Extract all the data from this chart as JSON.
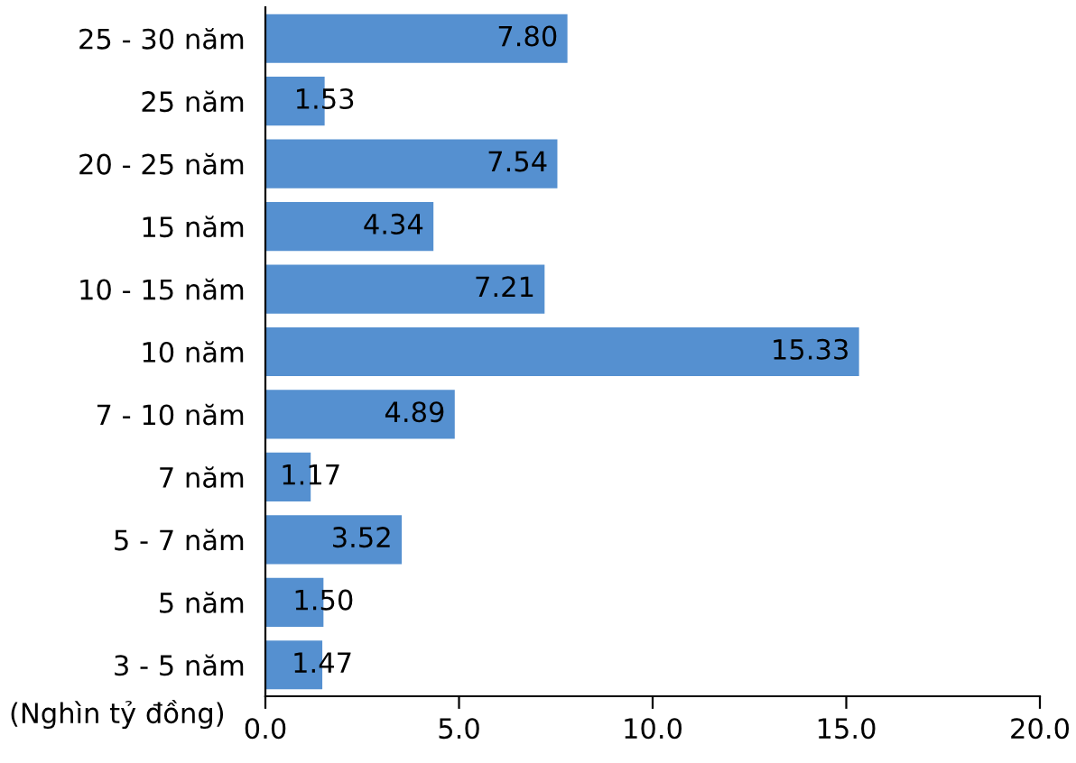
{
  "chart_data": {
    "type": "bar",
    "orientation": "horizontal",
    "categories": [
      "25 - 30 năm",
      "25 năm",
      "20 - 25 năm",
      "15 năm",
      "10 - 15 năm",
      "10 năm",
      "7 - 10 năm",
      "7 năm",
      "5 - 7 năm",
      "5 năm",
      "3 - 5 năm"
    ],
    "values": [
      7.8,
      1.53,
      7.54,
      4.34,
      7.21,
      15.33,
      4.89,
      1.17,
      3.52,
      1.5,
      1.47
    ],
    "color": "#5590d0",
    "xlabel": "(Nghìn tỷ đồng)",
    "xlim": [
      0,
      20
    ],
    "xticks": [
      {
        "value": 0,
        "label": "0.0"
      },
      {
        "value": 5,
        "label": "5.0"
      },
      {
        "value": 10,
        "label": "10.0"
      },
      {
        "value": 15,
        "label": "15.0"
      },
      {
        "value": 20,
        "label": "20.0"
      }
    ],
    "value_labels": [
      "7.80",
      "1.53",
      "7.54",
      "4.34",
      "7.21",
      "15.33",
      "4.89",
      "1.17",
      "3.52",
      "1.50",
      "1.47"
    ],
    "grid": false,
    "legend": false
  }
}
